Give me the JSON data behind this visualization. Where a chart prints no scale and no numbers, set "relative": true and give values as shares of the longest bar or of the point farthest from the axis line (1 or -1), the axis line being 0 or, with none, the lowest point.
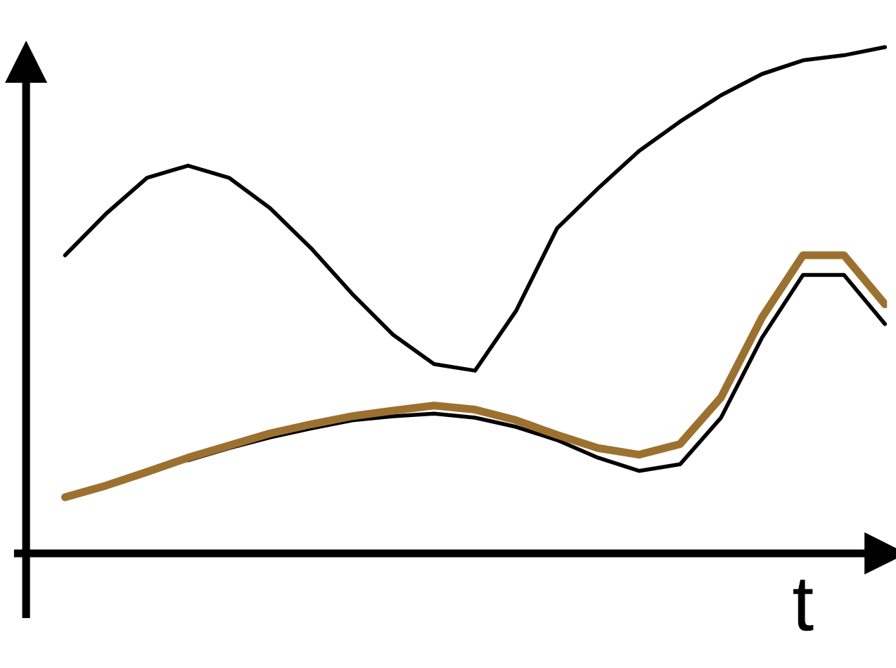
{
  "chart_data": {
    "type": "line",
    "relative": true,
    "xlabel": "t",
    "marker": "none",
    "line_style": "solid",
    "categories": [
      null,
      null,
      null,
      null,
      null,
      null,
      null,
      null,
      null,
      null,
      null,
      null,
      null,
      null,
      null,
      null,
      null,
      null,
      null,
      null,
      null
    ],
    "series": [
      {
        "color": "#000000",
        "values": [
          0.589,
          0.671,
          0.742,
          0.766,
          0.742,
          0.682,
          0.603,
          0.513,
          0.432,
          0.374,
          0.361,
          0.479,
          0.642,
          0.721,
          0.795,
          0.853,
          0.905,
          0.947,
          0.974,
          0.984,
          1
        ]
      },
      {
        "color": "#000000",
        "values": [
          null,
          null,
          null,
          0.184,
          0.208,
          0.229,
          0.247,
          0.263,
          0.271,
          0.276,
          0.268,
          0.25,
          0.224,
          0.189,
          0.163,
          0.176,
          0.268,
          0.426,
          0.55,
          0.55,
          0.453
        ]
      },
      {
        "color": "#9c7130",
        "values": [
          0.111,
          0.134,
          0.161,
          0.189,
          0.213,
          0.237,
          0.255,
          0.271,
          0.282,
          0.292,
          0.284,
          0.263,
          0.234,
          0.208,
          0.195,
          0.216,
          0.308,
          0.466,
          0.589,
          0.589,
          0.492
        ]
      }
    ]
  }
}
